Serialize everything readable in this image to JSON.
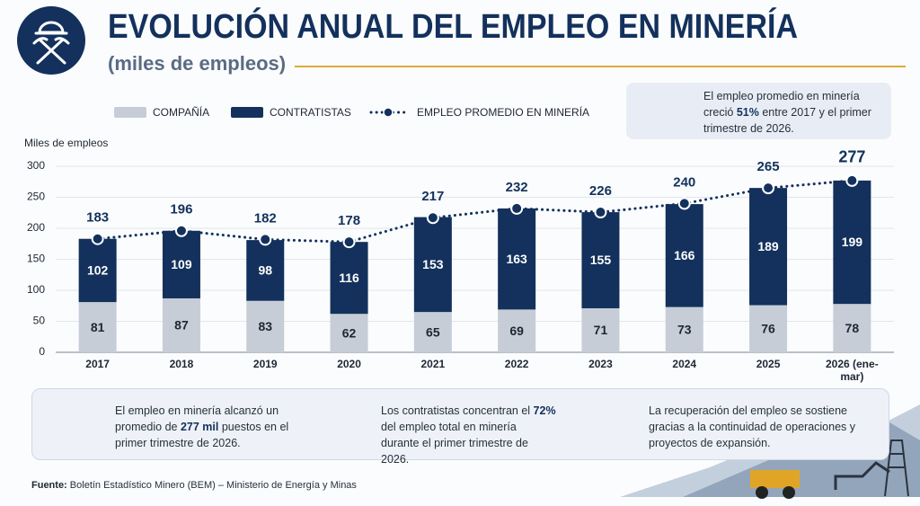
{
  "header": {
    "title": "EVOLUCIÓN ANUAL DEL EMPLEO EN MINERÍA",
    "subtitle": "(miles de empleos)"
  },
  "callout": {
    "parts": [
      "El empleo promedio en minería creció ",
      "51%",
      " entre 2017 y el primer trimestre de 2026."
    ]
  },
  "chart_data": {
    "type": "bar",
    "stacked": true,
    "y_label": "Miles de empleos",
    "categories": [
      "2017",
      "2018",
      "2019",
      "2020",
      "2021",
      "2022",
      "2023",
      "2024",
      "2025",
      "2026 (ene-mar)"
    ],
    "series": [
      {
        "name": "COMPAÑÍA",
        "color": "#c6cdd7",
        "values": [
          81,
          87,
          83,
          62,
          65,
          69,
          71,
          73,
          76,
          78
        ]
      },
      {
        "name": "CONTRATISTAS",
        "color": "#13315c",
        "values": [
          102,
          109,
          98,
          116,
          153,
          163,
          155,
          166,
          189,
          199
        ]
      },
      {
        "name": "EMPLEO PROMEDIO EN MINERÍA",
        "type": "line",
        "color": "#13315c",
        "values": [
          183,
          196,
          182,
          178,
          217,
          232,
          226,
          240,
          265,
          277
        ]
      }
    ],
    "ylim": [
      0,
      300
    ],
    "yticks": [
      0,
      50,
      100,
      150,
      200,
      250,
      300
    ],
    "grid": true,
    "legend": "top"
  },
  "cards": [
    {
      "parts": [
        "El empleo en minería alcanzó un promedio de ",
        "277 mil",
        " puestos en el primer trimestre de 2026."
      ]
    },
    {
      "parts": [
        "Los contratistas concentran el ",
        "72%",
        " del empleo total en minería durante el primer trimestre de 2026."
      ]
    },
    {
      "parts": [
        "La recuperación del empleo se sostiene gracias a la continuidad de operaciones y proyectos de expansión."
      ]
    }
  ],
  "source": {
    "label": "Fuente:",
    "text": "Boletín Estadístico Minero (BEM) – Ministerio de Energía y Minas"
  }
}
